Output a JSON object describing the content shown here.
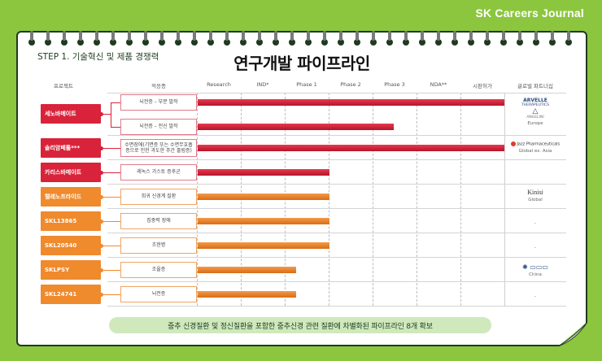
{
  "brand": "SK Careers Journal",
  "step_label": "STEP 1. 기술혁신 및 제품 경쟁력",
  "title": "연구개발 파이프라인",
  "columns": {
    "product": "프로젝트",
    "indication": "적응증",
    "phases": [
      "Research",
      "IND*",
      "Phase 1",
      "Phase 2",
      "Phase 3",
      "NDA**",
      "시판허가"
    ],
    "partner": "글로벌 파트너십"
  },
  "projects": [
    {
      "name": "세노바메이트",
      "color": "red"
    },
    {
      "name": "솔리암페톨***",
      "color": "red"
    },
    {
      "name": "카리스바메이트",
      "color": "red"
    },
    {
      "name": "렐레노프라이드",
      "color": "orange"
    },
    {
      "name": "SKL13865",
      "color": "orange"
    },
    {
      "name": "SKL20540",
      "color": "orange"
    },
    {
      "name": "SKLPSY",
      "color": "orange"
    },
    {
      "name": "SKL24741",
      "color": "orange"
    }
  ],
  "indications": [
    {
      "text": "뇌전증 – 부분 발작",
      "progress_pct": 100
    },
    {
      "text": "뇌전증 – 전신 발작",
      "progress_pct": 64
    },
    {
      "text": "수면장애(기면증 또는 수면무호흡증으로 인한 과도한 주간 졸림증)",
      "progress_pct": 100
    },
    {
      "text": "레녹스 가스토 증후군",
      "progress_pct": 43
    },
    {
      "text": "희귀 신경계 질환",
      "progress_pct": 43
    },
    {
      "text": "집중력 장애",
      "progress_pct": 43
    },
    {
      "text": "조현병",
      "progress_pct": 43
    },
    {
      "text": "조울증",
      "progress_pct": 32
    },
    {
      "text": "뇌전증",
      "progress_pct": 32
    }
  ],
  "partners": [
    {
      "logo": "ARVELLE",
      "logo_sub": "THERAPEUTICS",
      "logo2": "ANGELINI",
      "region": "Europe"
    },
    {
      "logo": "Jazz Pharmaceuticals",
      "region": "Global ex. Asia"
    },
    {
      "logo": "",
      "region": ""
    },
    {
      "logo": "Kinisi",
      "region": "Global"
    },
    {
      "logo": "",
      "region": "-"
    },
    {
      "logo": "",
      "region": "-"
    },
    {
      "logo": "",
      "region": "China"
    },
    {
      "logo": "",
      "region": "-"
    }
  ],
  "banner": "중추 신경질환 및 정신질환을 포함한 중추신경 관련 질환에 차별화된 파이프라인 8개 확보",
  "colors": {
    "red": "#d8233a",
    "orange": "#ef8a2d",
    "green": "#8cc63f",
    "banner": "#cfe9bd"
  }
}
